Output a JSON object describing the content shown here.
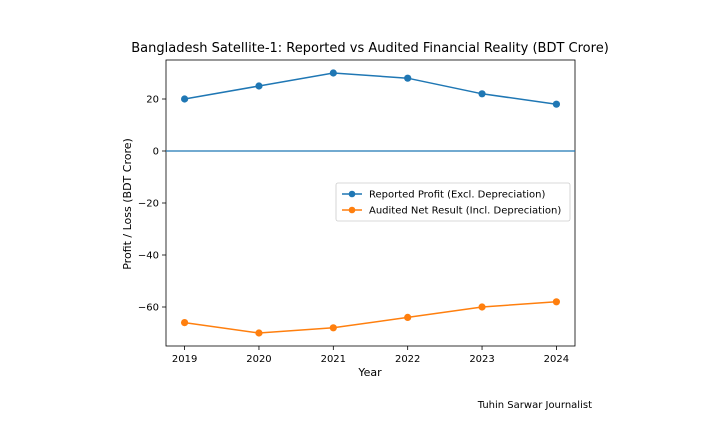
{
  "chart_data": {
    "type": "line",
    "title": "Bangladesh Satellite-1: Reported vs Audited Financial Reality (BDT Crore)",
    "xlabel": "Year",
    "ylabel": "Profit / Loss (BDT Crore)",
    "x": [
      2019,
      2020,
      2021,
      2022,
      2023,
      2024
    ],
    "x_tick_labels": [
      "2019",
      "2020",
      "2021",
      "2022",
      "2023",
      "2024"
    ],
    "y_ticks": [
      20,
      0,
      -20,
      -40,
      -60
    ],
    "y_tick_labels": [
      "20",
      "0",
      "−20",
      "−40",
      "−60"
    ],
    "xlim": [
      2018.75,
      2024.25
    ],
    "ylim": [
      -75.0,
      35.0
    ],
    "reference_line_y": 0,
    "legend_position": "center-right",
    "series": [
      {
        "name": "Reported Profit (Excl. Depreciation)",
        "color": "#1f77b4",
        "values": [
          20,
          25,
          30,
          28,
          22,
          18
        ]
      },
      {
        "name": "Audited Net Result (Incl. Depreciation)",
        "color": "#ff7f0e",
        "values": [
          -66,
          -70,
          -68,
          -64,
          -60,
          -58
        ]
      }
    ]
  },
  "credit": "Tuhin Sarwar Journalist"
}
